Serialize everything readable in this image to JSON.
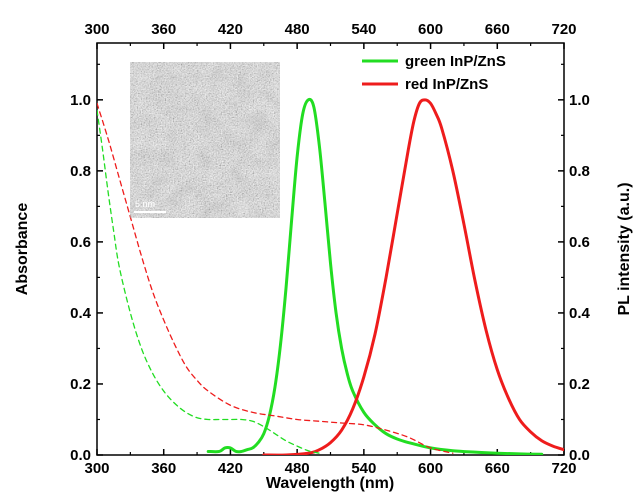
{
  "chart_data": {
    "type": "line",
    "xlabel": "Wavelength (nm)",
    "ylabel_left": "Absorbance",
    "ylabel_right": "PL intensity (a.u.)",
    "xlim": [
      300,
      720
    ],
    "ylim_left": [
      0,
      1.16
    ],
    "ylim_right": [
      0,
      1.16
    ],
    "x_ticks": [
      "300",
      "360",
      "420",
      "480",
      "540",
      "600",
      "660",
      "720"
    ],
    "x_tick_values": [
      300,
      360,
      420,
      480,
      540,
      600,
      660,
      720
    ],
    "y_ticks": [
      "0.0",
      "0.2",
      "0.4",
      "0.6",
      "0.8",
      "1.0"
    ],
    "y_tick_values": [
      0,
      0.2,
      0.4,
      0.6,
      0.8,
      1.0
    ],
    "grid": false,
    "legend_placement": "top-right",
    "series": [
      {
        "name": "green InP/ZnS",
        "kind": "PL",
        "color": "#22dd22",
        "style": "solid",
        "x": [
          400,
          410,
          415,
          420,
          425,
          430,
          435,
          440,
          445,
          450,
          455,
          460,
          465,
          470,
          475,
          480,
          485,
          490,
          495,
          500,
          505,
          510,
          515,
          520,
          525,
          530,
          540,
          550,
          560,
          570,
          580,
          600,
          620,
          640,
          660,
          680,
          700
        ],
        "y": [
          0.01,
          0.01,
          0.02,
          0.02,
          0.01,
          0.01,
          0.015,
          0.02,
          0.035,
          0.06,
          0.11,
          0.19,
          0.31,
          0.47,
          0.66,
          0.84,
          0.96,
          1.0,
          0.98,
          0.87,
          0.71,
          0.54,
          0.4,
          0.3,
          0.23,
          0.18,
          0.12,
          0.085,
          0.06,
          0.045,
          0.035,
          0.02,
          0.012,
          0.008,
          0.005,
          0.003,
          0.002
        ]
      },
      {
        "name": "red InP/ZnS",
        "kind": "PL",
        "color": "#ee1c1c",
        "style": "solid",
        "x": [
          450,
          470,
          490,
          500,
          510,
          520,
          530,
          540,
          550,
          560,
          570,
          580,
          585,
          590,
          595,
          600,
          605,
          610,
          620,
          630,
          640,
          650,
          660,
          670,
          680,
          690,
          700,
          710,
          720
        ],
        "y": [
          0.0,
          0.0,
          0.005,
          0.015,
          0.035,
          0.07,
          0.13,
          0.22,
          0.34,
          0.5,
          0.68,
          0.86,
          0.94,
          0.99,
          1.0,
          0.99,
          0.96,
          0.92,
          0.8,
          0.65,
          0.49,
          0.35,
          0.24,
          0.16,
          0.1,
          0.065,
          0.04,
          0.025,
          0.015
        ]
      },
      {
        "name": "",
        "kind": "Absorbance",
        "color": "#22dd22",
        "style": "dashed",
        "x": [
          300,
          305,
          310,
          315,
          320,
          330,
          340,
          350,
          360,
          370,
          380,
          390,
          400,
          410,
          420,
          430,
          440,
          450,
          460,
          470,
          480,
          490,
          500
        ],
        "y": [
          0.97,
          0.86,
          0.74,
          0.63,
          0.53,
          0.4,
          0.3,
          0.23,
          0.18,
          0.145,
          0.12,
          0.105,
          0.1,
          0.1,
          0.1,
          0.1,
          0.095,
          0.08,
          0.06,
          0.04,
          0.025,
          0.012,
          0.005
        ]
      },
      {
        "name": "",
        "kind": "Absorbance",
        "color": "#ee1c1c",
        "style": "dashed",
        "x": [
          300,
          310,
          320,
          330,
          340,
          350,
          360,
          370,
          380,
          390,
          400,
          420,
          440,
          460,
          480,
          500,
          520,
          540,
          560,
          580,
          600,
          620
        ],
        "y": [
          0.99,
          0.89,
          0.78,
          0.67,
          0.56,
          0.46,
          0.38,
          0.31,
          0.25,
          0.21,
          0.18,
          0.14,
          0.12,
          0.11,
          0.1,
          0.095,
          0.09,
          0.085,
          0.07,
          0.05,
          0.02,
          0.005
        ]
      }
    ],
    "inset": {
      "description_kind": "TEM micrograph",
      "scale_bar_label": "5 nm"
    }
  }
}
